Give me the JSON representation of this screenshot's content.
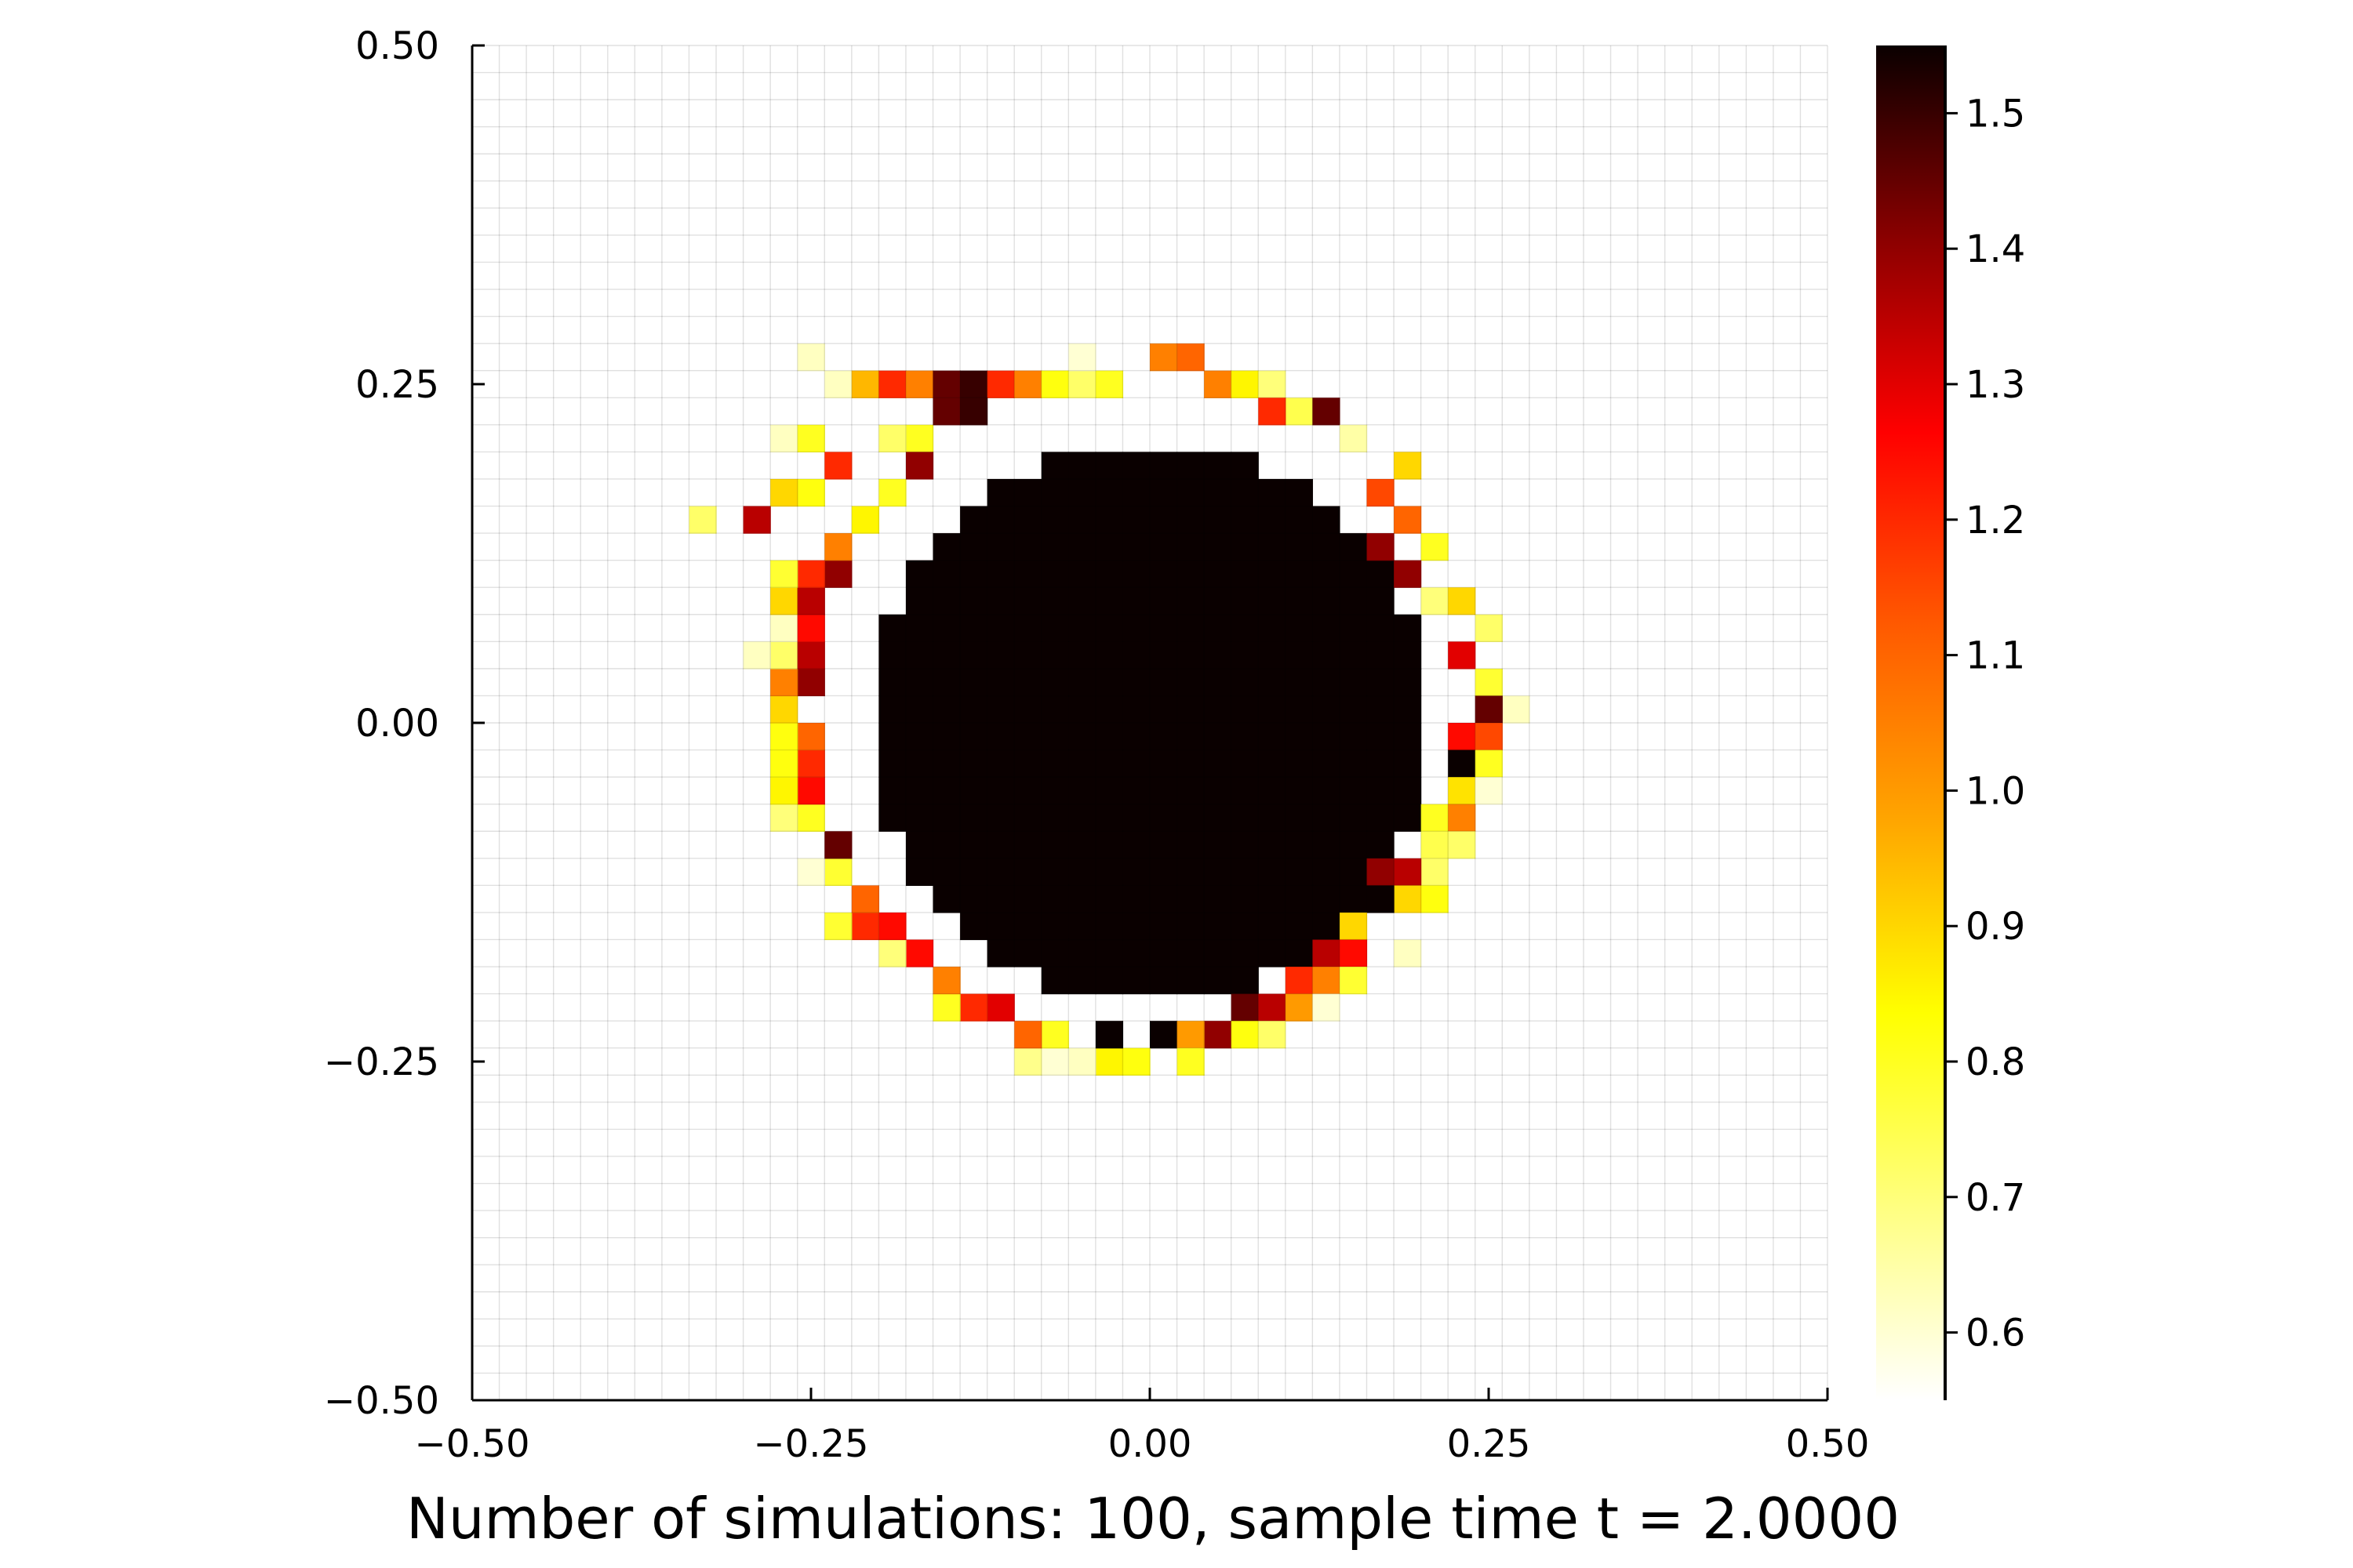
{
  "chart_data": {
    "type": "heatmap",
    "xlabel": "Number of simulations: 100, sample time t = 2.0000",
    "ylabel": "",
    "xlim": [
      -0.5,
      0.5
    ],
    "ylim": [
      -0.5,
      0.5
    ],
    "x_ticks": [
      "−0.50",
      "−0.25",
      "0.00",
      "0.25",
      "0.50"
    ],
    "y_ticks": [
      "0.50",
      "0.25",
      "0.00",
      "−0.25",
      "−0.50"
    ],
    "grid": true,
    "grid_cells": 50,
    "colormap": "hot (reversed)",
    "colorbar": {
      "range": [
        0.55,
        1.55
      ],
      "ticks": [
        "1.5",
        "1.4",
        "1.3",
        "1.2",
        "1.1",
        "1.0",
        "0.9",
        "0.8",
        "0.7",
        "0.6"
      ],
      "stops": [
        "#ffffff",
        "#ffff80",
        "#ffff00",
        "#ffa500",
        "#ff5a00",
        "#ff0000",
        "#8b0000",
        "#0a0000"
      ]
    },
    "disk": {
      "center": [
        0.0,
        0.0
      ],
      "radius": 0.21,
      "interior_value": 1.55
    },
    "boundary_cells": [
      [
        -0.25,
        0.27,
        0.62
      ],
      [
        -0.23,
        0.25,
        0.62
      ],
      [
        -0.21,
        0.25,
        0.95
      ],
      [
        -0.19,
        0.25,
        1.2
      ],
      [
        -0.17,
        0.25,
        1.05
      ],
      [
        -0.15,
        0.25,
        1.45
      ],
      [
        -0.13,
        0.25,
        1.5
      ],
      [
        -0.11,
        0.25,
        1.2
      ],
      [
        -0.09,
        0.25,
        1.05
      ],
      [
        -0.07,
        0.25,
        0.82
      ],
      [
        -0.05,
        0.25,
        0.72
      ],
      [
        -0.03,
        0.25,
        0.8
      ],
      [
        -0.05,
        0.27,
        0.6
      ],
      [
        0.01,
        0.27,
        1.05
      ],
      [
        0.03,
        0.27,
        1.1
      ],
      [
        0.05,
        0.25,
        1.05
      ],
      [
        0.07,
        0.25,
        0.85
      ],
      [
        0.09,
        0.25,
        0.7
      ],
      [
        0.11,
        0.23,
        0.75
      ],
      [
        0.09,
        0.23,
        1.2
      ],
      [
        0.13,
        0.23,
        1.45
      ],
      [
        0.15,
        0.21,
        0.65
      ],
      [
        -0.27,
        0.21,
        0.62
      ],
      [
        -0.25,
        0.21,
        0.8
      ],
      [
        -0.23,
        0.19,
        1.2
      ],
      [
        -0.25,
        0.17,
        0.82
      ],
      [
        -0.27,
        0.17,
        0.9
      ],
      [
        -0.29,
        0.15,
        1.35
      ],
      [
        -0.33,
        0.15,
        0.72
      ],
      [
        0.19,
        0.19,
        0.9
      ],
      [
        0.17,
        0.17,
        1.15
      ],
      [
        0.19,
        0.15,
        1.1
      ],
      [
        0.21,
        0.13,
        0.8
      ],
      [
        0.17,
        0.13,
        1.4
      ],
      [
        0.19,
        0.11,
        1.4
      ],
      [
        0.21,
        0.09,
        0.7
      ],
      [
        0.23,
        0.09,
        0.9
      ],
      [
        0.25,
        0.07,
        0.72
      ],
      [
        0.23,
        0.05,
        1.3
      ],
      [
        0.25,
        0.03,
        0.78
      ],
      [
        0.27,
        0.01,
        0.62
      ],
      [
        0.25,
        0.01,
        1.45
      ],
      [
        0.23,
        -0.01,
        1.25
      ],
      [
        0.25,
        -0.01,
        1.15
      ],
      [
        0.23,
        -0.03,
        1.55
      ],
      [
        0.25,
        -0.03,
        0.8
      ],
      [
        0.23,
        -0.05,
        0.88
      ],
      [
        0.25,
        -0.05,
        0.6
      ],
      [
        0.21,
        -0.07,
        0.8
      ],
      [
        0.23,
        -0.07,
        1.05
      ],
      [
        0.23,
        -0.09,
        0.72
      ],
      [
        0.21,
        -0.09,
        0.75
      ],
      [
        0.21,
        -0.11,
        0.72
      ],
      [
        0.19,
        -0.11,
        1.35
      ],
      [
        0.17,
        -0.11,
        1.4
      ],
      [
        0.21,
        -0.13,
        0.82
      ],
      [
        0.19,
        -0.13,
        0.9
      ],
      [
        0.17,
        -0.13,
        1.55
      ],
      [
        0.19,
        -0.17,
        0.62
      ],
      [
        0.15,
        -0.15,
        0.9
      ],
      [
        0.13,
        -0.17,
        1.35
      ],
      [
        0.15,
        -0.17,
        1.25
      ],
      [
        0.11,
        -0.19,
        1.2
      ],
      [
        0.13,
        -0.19,
        1.05
      ],
      [
        0.15,
        -0.19,
        0.78
      ],
      [
        0.07,
        -0.21,
        1.45
      ],
      [
        0.09,
        -0.21,
        1.35
      ],
      [
        0.11,
        -0.21,
        1.0
      ],
      [
        0.13,
        -0.21,
        0.6
      ],
      [
        0.05,
        -0.23,
        1.4
      ],
      [
        0.07,
        -0.23,
        0.82
      ],
      [
        0.09,
        -0.23,
        0.72
      ],
      [
        0.01,
        -0.23,
        1.55
      ],
      [
        0.03,
        -0.23,
        1.0
      ],
      [
        -0.01,
        -0.25,
        0.82
      ],
      [
        0.03,
        -0.25,
        0.8
      ],
      [
        -0.03,
        -0.25,
        0.85
      ],
      [
        -0.05,
        -0.25,
        0.62
      ],
      [
        -0.07,
        -0.25,
        0.6
      ],
      [
        -0.09,
        -0.25,
        0.68
      ],
      [
        -0.03,
        -0.23,
        1.55
      ],
      [
        -0.07,
        -0.23,
        0.8
      ],
      [
        -0.09,
        -0.23,
        1.1
      ],
      [
        -0.11,
        -0.21,
        1.3
      ],
      [
        -0.13,
        -0.21,
        1.2
      ],
      [
        -0.15,
        -0.21,
        0.8
      ],
      [
        -0.15,
        -0.19,
        1.05
      ],
      [
        -0.17,
        -0.17,
        1.25
      ],
      [
        -0.19,
        -0.17,
        0.7
      ],
      [
        -0.19,
        -0.15,
        1.25
      ],
      [
        -0.21,
        -0.15,
        1.2
      ],
      [
        -0.23,
        -0.15,
        0.78
      ],
      [
        -0.21,
        -0.13,
        1.1
      ],
      [
        -0.23,
        -0.11,
        0.78
      ],
      [
        -0.25,
        -0.11,
        0.6
      ],
      [
        -0.23,
        -0.09,
        1.45
      ],
      [
        -0.25,
        -0.07,
        0.8
      ],
      [
        -0.27,
        -0.07,
        0.7
      ],
      [
        -0.25,
        -0.05,
        1.25
      ],
      [
        -0.27,
        -0.05,
        0.85
      ],
      [
        -0.25,
        -0.03,
        1.2
      ],
      [
        -0.27,
        -0.03,
        0.82
      ],
      [
        -0.25,
        -0.01,
        1.1
      ],
      [
        -0.27,
        -0.01,
        0.82
      ],
      [
        -0.27,
        0.01,
        0.9
      ],
      [
        -0.25,
        0.03,
        1.4
      ],
      [
        -0.27,
        0.03,
        1.05
      ],
      [
        -0.27,
        0.05,
        0.72
      ],
      [
        -0.29,
        0.05,
        0.62
      ],
      [
        -0.25,
        0.05,
        1.35
      ],
      [
        -0.27,
        0.07,
        0.62
      ],
      [
        -0.25,
        0.07,
        1.25
      ],
      [
        -0.27,
        0.09,
        0.9
      ],
      [
        -0.25,
        0.09,
        1.35
      ],
      [
        -0.23,
        0.11,
        1.4
      ],
      [
        -0.25,
        0.11,
        1.2
      ],
      [
        -0.27,
        0.11,
        0.78
      ],
      [
        -0.23,
        0.13,
        1.05
      ],
      [
        -0.21,
        0.15,
        0.85
      ],
      [
        -0.19,
        0.17,
        0.8
      ],
      [
        -0.17,
        0.21,
        0.8
      ],
      [
        -0.19,
        0.21,
        0.72
      ],
      [
        -0.17,
        0.19,
        1.4
      ],
      [
        -0.15,
        0.23,
        1.45
      ],
      [
        -0.13,
        0.23,
        1.5
      ]
    ]
  }
}
